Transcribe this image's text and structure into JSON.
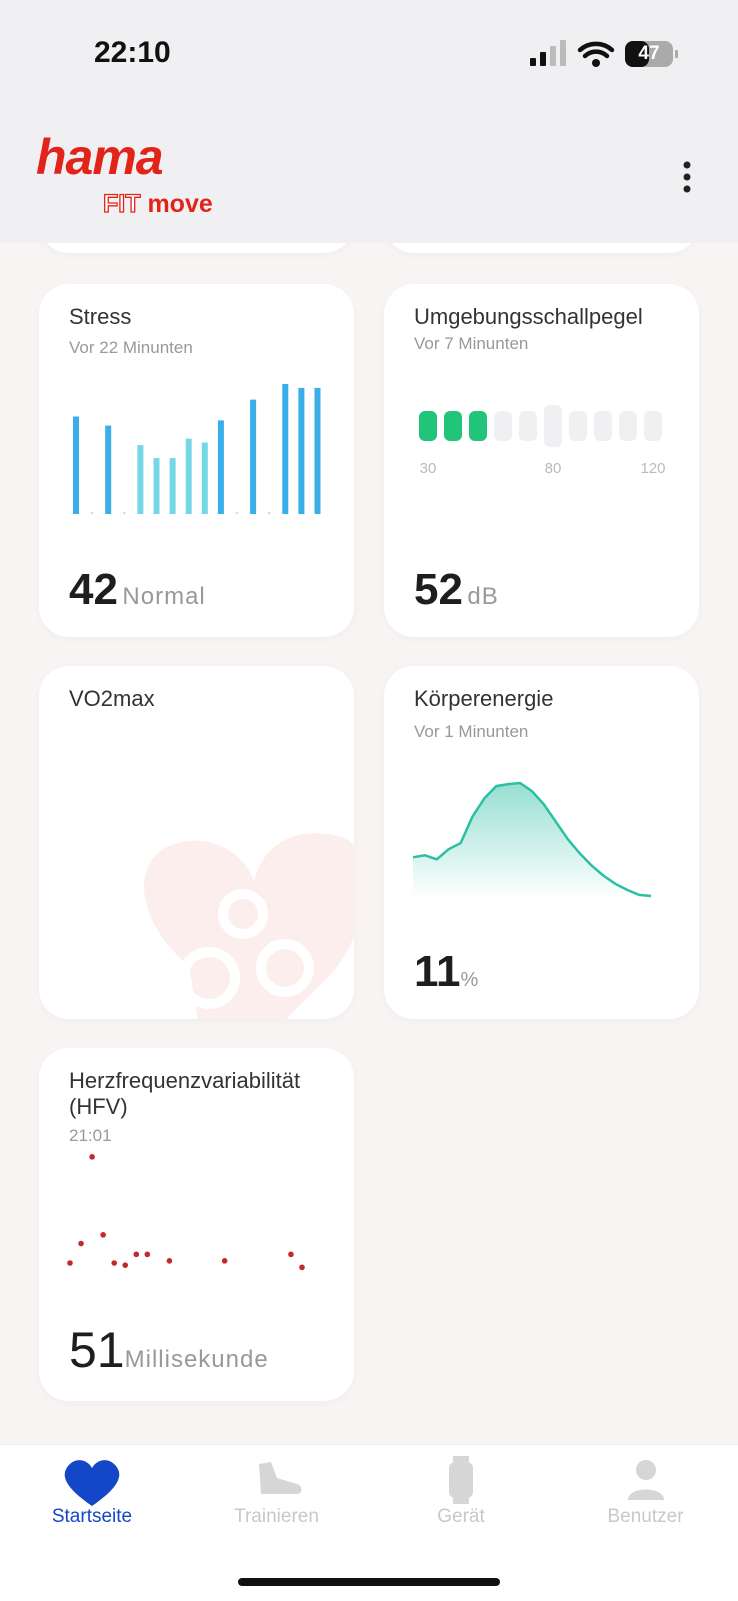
{
  "status_bar": {
    "time": "22:10",
    "battery": "47"
  },
  "header": {
    "brand": "hama",
    "product_fit": "FIT",
    "product_move": "move"
  },
  "cards": {
    "stress": {
      "title": "Stress",
      "subtitle": "Vor 22 Minunten",
      "value": 42,
      "status": "Normal",
      "chart": {
        "type": "bar",
        "values": [
          75,
          0,
          68,
          0,
          53,
          43,
          43,
          58,
          55,
          72,
          0,
          88,
          0,
          100,
          97,
          97
        ],
        "colors": [
          "#3aaee8",
          "#3aaee8",
          "#3aaee8",
          "#3aaee8",
          "#74d7e6",
          "#74d7e6",
          "#74d7e6",
          "#74d7e6",
          "#74d7e6",
          "#3aaee8",
          "#3aaee8",
          "#3aaee8",
          "#3aaee8",
          "#3aaee8",
          "#3aaee8",
          "#3aaee8"
        ],
        "ylim": [
          0,
          100
        ]
      }
    },
    "noise": {
      "title": "Umgebungsschallpegel",
      "subtitle": "Vor 7 Minunten",
      "value": 52,
      "unit": "dB",
      "chart": {
        "type": "meter",
        "min": 30,
        "step": 10,
        "segments": 10,
        "ticks": [
          30,
          80,
          120
        ],
        "highlight": 80,
        "color": "#22c47a",
        "empty_color": "#f0f0f3"
      }
    },
    "vo2max": {
      "title": "VO2max"
    },
    "energy": {
      "title": "Körperenergie",
      "subtitle": "Vor 1 Minunten",
      "value": 11,
      "unit": "%",
      "chart": {
        "type": "area",
        "values": [
          40,
          42,
          38,
          48,
          54,
          80,
          98,
          110,
          112,
          113,
          105,
          92,
          75,
          58,
          44,
          32,
          22,
          14,
          8,
          3,
          2
        ],
        "ylim": [
          0,
          115
        ],
        "color": "#2bbfa4"
      }
    },
    "hrv": {
      "title": "Herzfrequenzvariabilität (HFV)",
      "subtitle": "21:01",
      "value": 51,
      "unit": "Millisekunde",
      "chart": {
        "type": "scatter",
        "x": [
          0,
          1,
          2,
          3,
          4,
          5,
          6,
          7,
          9,
          14,
          20,
          21
        ],
        "values": [
          41,
          50,
          90,
          54,
          41,
          40,
          45,
          45,
          42,
          42,
          45,
          39
        ],
        "xlim": [
          0,
          21
        ],
        "ylim": [
          35,
          95
        ],
        "color": "#c62828"
      }
    }
  },
  "nav": {
    "items": [
      "Startseite",
      "Trainieren",
      "Gerät",
      "Benutzer"
    ],
    "active": 0
  }
}
